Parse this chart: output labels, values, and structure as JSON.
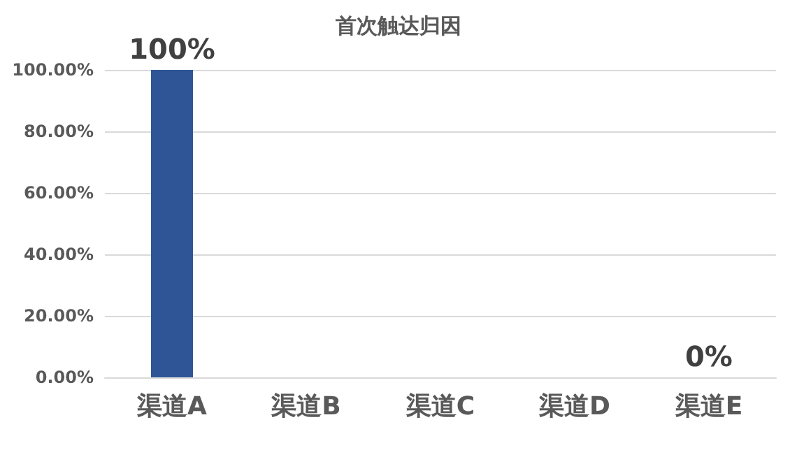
{
  "chart_data": {
    "type": "bar",
    "title": "首次触达归因",
    "categories": [
      "渠道A",
      "渠道B",
      "渠道C",
      "渠道D",
      "渠道E"
    ],
    "values": [
      100,
      0,
      0,
      0,
      0
    ],
    "value_labels": [
      "100%",
      null,
      null,
      null,
      "0%"
    ],
    "color": "#2f5597",
    "ylim": [
      0,
      100
    ],
    "yticks": [
      {
        "value": 0,
        "label": "0.00%"
      },
      {
        "value": 20,
        "label": "20.00%"
      },
      {
        "value": 40,
        "label": "40.00%"
      },
      {
        "value": 60,
        "label": "60.00%"
      },
      {
        "value": 80,
        "label": "80.00%"
      },
      {
        "value": 100,
        "label": "100.00%"
      }
    ],
    "grid": "y"
  }
}
